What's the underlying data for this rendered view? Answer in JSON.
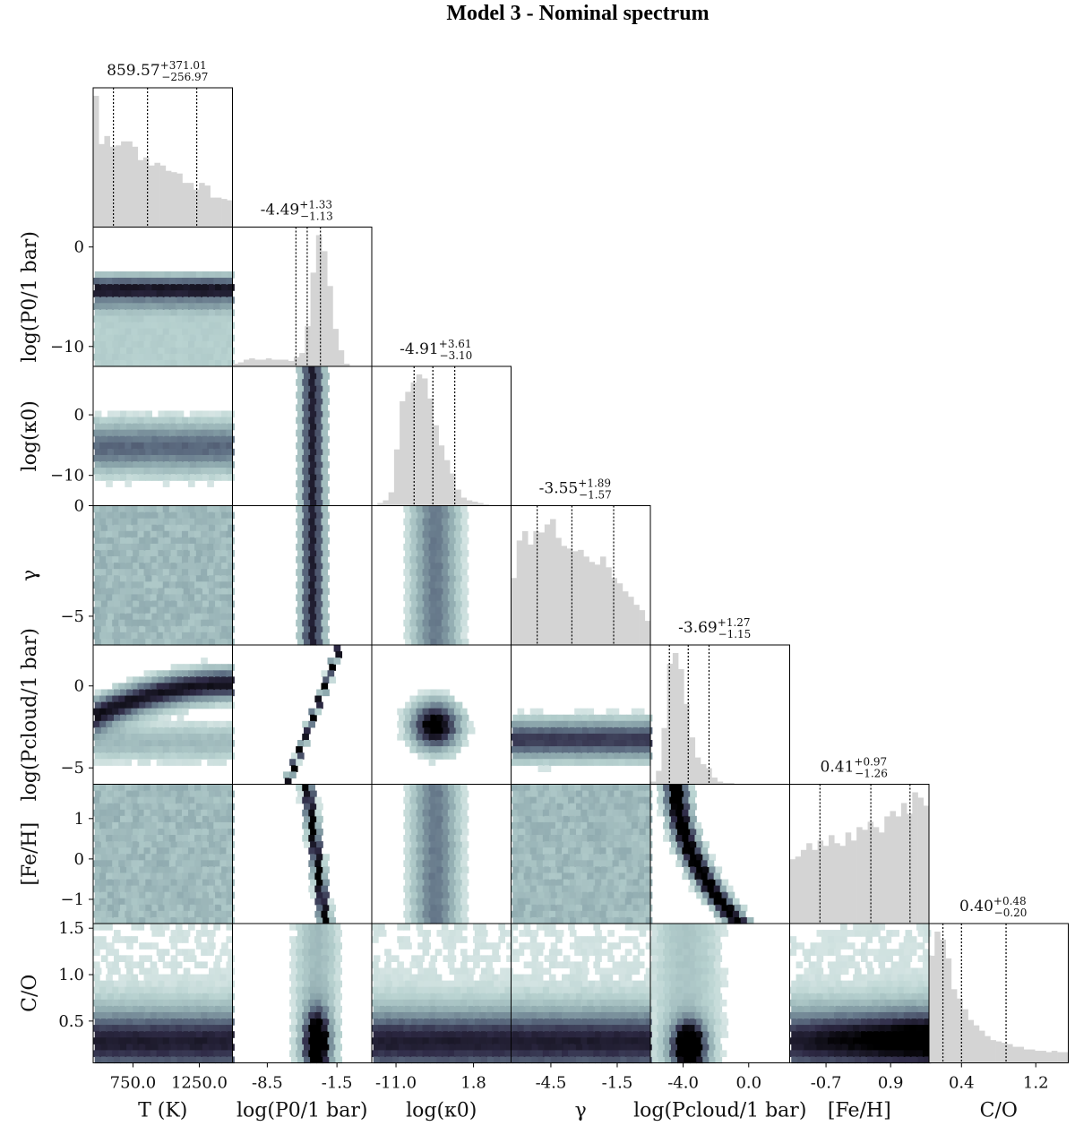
{
  "figure": {
    "title": "Model 3 - Nominal spectrum"
  },
  "chart_data": {
    "type": "corner",
    "parameters": [
      {
        "key": "T",
        "label": "T (K)",
        "range": [
          450,
          1500
        ],
        "ticks": [
          750.0,
          1250.0
        ],
        "tick_labels": [
          "750.0",
          "1250.0"
        ],
        "y_ticks": [],
        "y_tick_labels": [],
        "median": 859.57,
        "plus": 371.01,
        "minus": 256.97,
        "stat": {
          "main": "859.57",
          "sup": "+371.01",
          "sub": "−256.97"
        },
        "hist": [
          0.98,
          0.62,
          0.68,
          0.6,
          0.61,
          0.64,
          0.64,
          0.6,
          0.5,
          0.52,
          0.46,
          0.48,
          0.46,
          0.42,
          0.41,
          0.4,
          0.33,
          0.33,
          0.28,
          0.33,
          0.31,
          0.22,
          0.22,
          0.21,
          0.2
        ]
      },
      {
        "key": "logP0",
        "label": "log(P0/1 bar)",
        "range": [
          -12,
          2
        ],
        "ticks": [
          -8.5,
          -1.5
        ],
        "tick_labels": [
          "-8.5",
          "-1.5"
        ],
        "y_ticks": [
          0,
          -10
        ],
        "y_tick_labels": [
          "0",
          "−10"
        ],
        "median": -4.49,
        "plus": 1.33,
        "minus": 1.13,
        "stat": {
          "main": "-4.49",
          "sup": "+1.33",
          "sub": "−1.13"
        },
        "hist": [
          0.02,
          0.03,
          0.05,
          0.06,
          0.05,
          0.05,
          0.06,
          0.05,
          0.05,
          0.05,
          0.04,
          0.07,
          0.1,
          0.3,
          0.7,
          0.98,
          0.86,
          0.6,
          0.28,
          0.12,
          0.02,
          0.0,
          0.0,
          0.0,
          0.0
        ]
      },
      {
        "key": "logk0",
        "label": "log(κ0)",
        "range": [
          -15,
          8
        ],
        "ticks": [
          -11.0,
          1.8
        ],
        "tick_labels": [
          "-11.0",
          "1.8"
        ],
        "y_ticks": [
          0,
          -10
        ],
        "y_tick_labels": [
          "0",
          "−10"
        ],
        "median": -4.91,
        "plus": 3.61,
        "minus": 3.1,
        "stat": {
          "main": "-4.91",
          "sup": "+3.61",
          "sub": "−3.10"
        },
        "hist": [
          0.0,
          0.02,
          0.04,
          0.1,
          0.42,
          0.78,
          0.85,
          0.92,
          0.98,
          0.95,
          0.8,
          0.6,
          0.45,
          0.34,
          0.24,
          0.12,
          0.06,
          0.04,
          0.03,
          0.02,
          0.01,
          0.0,
          0.0,
          0.0,
          0.0
        ]
      },
      {
        "key": "gamma",
        "label": "γ",
        "range": [
          -6.3,
          0
        ],
        "ticks": [
          -4.5,
          -1.5
        ],
        "tick_labels": [
          "-4.5",
          "-1.5"
        ],
        "y_ticks": [
          0,
          -5
        ],
        "y_tick_labels": [
          "0",
          "−5"
        ],
        "median": -3.55,
        "plus": 1.89,
        "minus": 1.57,
        "stat": {
          "main": "-3.55",
          "sup": "+1.89",
          "sub": "−1.57"
        },
        "hist": [
          0.5,
          0.78,
          0.85,
          0.75,
          0.85,
          0.84,
          0.9,
          0.94,
          0.8,
          0.74,
          0.72,
          0.7,
          0.71,
          0.66,
          0.62,
          0.6,
          0.66,
          0.58,
          0.5,
          0.46,
          0.4,
          0.36,
          0.3,
          0.26,
          0.18
        ]
      },
      {
        "key": "logPcloud",
        "label": "log(Pcloud/1 bar)",
        "range": [
          -6,
          2.5
        ],
        "ticks": [
          -4.0,
          0.0
        ],
        "tick_labels": [
          "-4.0",
          "0.0"
        ],
        "y_ticks": [
          0,
          -5
        ],
        "y_tick_labels": [
          "0",
          "−5"
        ],
        "median": -3.69,
        "plus": 1.27,
        "minus": 1.15,
        "stat": {
          "main": "-3.69",
          "sup": "+1.27",
          "sub": "−1.15"
        },
        "hist": [
          0.02,
          0.1,
          0.42,
          0.9,
          0.98,
          0.86,
          0.6,
          0.35,
          0.2,
          0.15,
          0.12,
          0.05,
          0.02,
          0.01,
          0.01,
          0.0,
          0.0,
          0.0,
          0.0,
          0.0,
          0.0,
          0.0,
          0.0,
          0.0,
          0.0
        ]
      },
      {
        "key": "FeH",
        "label": "[Fe/H]",
        "range": [
          -1.6,
          1.85
        ],
        "ticks": [
          -0.7,
          0.9
        ],
        "tick_labels": [
          "-0.7",
          "0.9"
        ],
        "y_ticks": [
          1,
          0,
          -1
        ],
        "y_tick_labels": [
          "1",
          "0",
          "−1"
        ],
        "median": 0.41,
        "plus": 0.97,
        "minus": 1.26,
        "stat": {
          "main": "0.41",
          "sup": "+0.97",
          "sub": "−1.26"
        },
        "hist": [
          0.48,
          0.5,
          0.55,
          0.6,
          0.55,
          0.62,
          0.58,
          0.66,
          0.6,
          0.58,
          0.68,
          0.62,
          0.72,
          0.7,
          0.76,
          0.72,
          0.68,
          0.8,
          0.84,
          0.8,
          0.9,
          0.82,
          0.98,
          0.94,
          0.88
        ]
      },
      {
        "key": "CO",
        "label": "C/O",
        "range": [
          0.05,
          1.55
        ],
        "ticks": [
          0.4,
          1.2
        ],
        "tick_labels": [
          "0.4",
          "1.2"
        ],
        "y_ticks": [
          1.5,
          1.0,
          0.5
        ],
        "y_tick_labels": [
          "1.5",
          "1.0",
          "0.5"
        ],
        "median": 0.4,
        "plus": 0.48,
        "minus": 0.2,
        "stat": {
          "main": "0.40",
          "sup": "+0.48",
          "sub": "−0.20"
        },
        "hist": [
          0.8,
          0.98,
          0.92,
          0.78,
          0.55,
          0.48,
          0.4,
          0.32,
          0.28,
          0.24,
          0.2,
          0.17,
          0.16,
          0.15,
          0.14,
          0.12,
          0.12,
          0.1,
          0.1,
          0.09,
          0.09,
          0.08,
          0.09,
          0.08,
          0.08
        ]
      }
    ],
    "hist_color": "#d4d4d4",
    "density_colormap": [
      "#ffffff",
      "#b9d3d1",
      "#8ea9ae",
      "#5f7084",
      "#2f2b47",
      "#000000"
    ],
    "quantile_line_style": "dotted"
  }
}
